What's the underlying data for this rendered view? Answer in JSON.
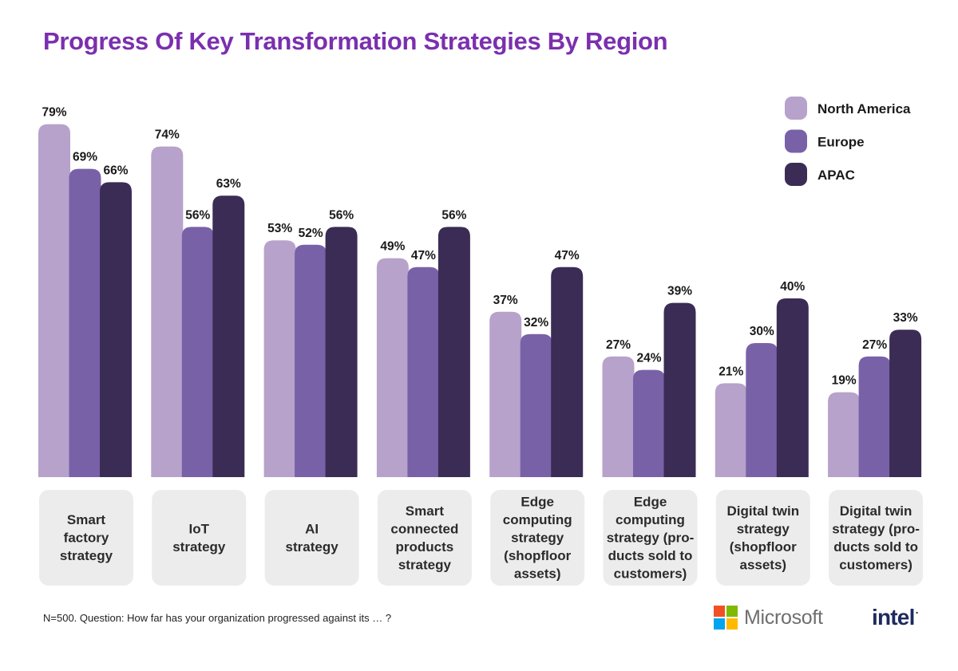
{
  "title": "Progress Of Key Transformation Strategies By Region",
  "footnote": "N=500. Question: How far has your organization progressed against its … ?",
  "logos": {
    "microsoft": "Microsoft",
    "intel": "intel"
  },
  "colors": {
    "North America": "#b7a2cb",
    "Europe": "#7961a8",
    "APAC": "#3b2c55",
    "title": "#7b2fae",
    "category_box": "#ececec"
  },
  "chart_data": {
    "type": "bar",
    "title": "Progress Of Key Transformation Strategies By Region",
    "categories": [
      [
        "Smart",
        "factory",
        "strategy"
      ],
      [
        "IoT",
        "strategy"
      ],
      [
        "AI",
        "strategy"
      ],
      [
        "Smart",
        "connected",
        "products",
        "strategy"
      ],
      [
        "Edge",
        "computing",
        "strategy",
        "(shopfloor",
        "assets)"
      ],
      [
        "Edge",
        "computing",
        "strategy (pro-",
        "ducts sold to",
        "customers)"
      ],
      [
        "Digital twin",
        "strategy",
        "(shopfloor",
        "assets)"
      ],
      [
        "Digital twin",
        "strategy (pro-",
        "ducts sold to",
        "customers)"
      ]
    ],
    "series": [
      {
        "name": "North America",
        "values": [
          79,
          74,
          53,
          49,
          37,
          27,
          21,
          19
        ]
      },
      {
        "name": "Europe",
        "values": [
          69,
          56,
          52,
          47,
          32,
          24,
          30,
          27
        ]
      },
      {
        "name": "APAC",
        "values": [
          66,
          63,
          56,
          56,
          47,
          39,
          40,
          33
        ]
      }
    ],
    "value_suffix": "%",
    "ylim": [
      0,
      100
    ],
    "grid": false,
    "legend_position": "top-right"
  }
}
